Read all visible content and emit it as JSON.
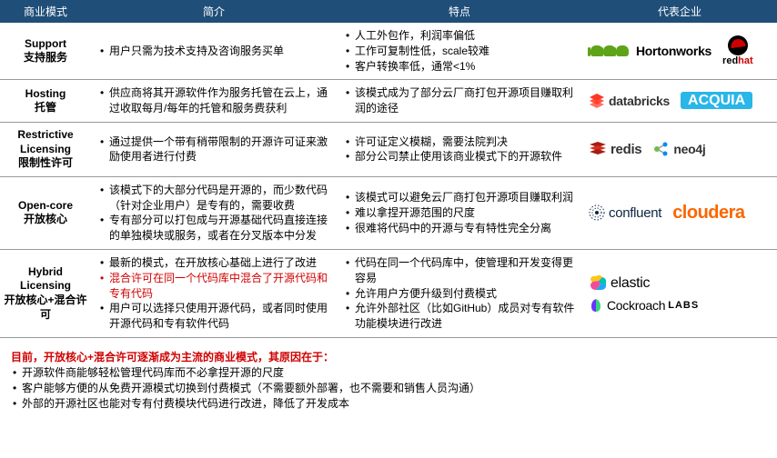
{
  "columns": [
    "商业模式",
    "简介",
    "特点",
    "代表企业"
  ],
  "rows": [
    {
      "model_en": "Support",
      "model_cn": "支持服务",
      "intro": [
        "用户只需为技术支持及咨询服务买单"
      ],
      "features": [
        "人工外包作，利润率偏低",
        "工作可复制性低，scale较难",
        "客户转换率低，通常<1%"
      ],
      "logos": [
        "hortonworks",
        "redhat"
      ]
    },
    {
      "model_en": "Hosting",
      "model_cn": "托管",
      "intro": [
        "供应商将其开源软件作为服务托管在云上，通过收取每月/每年的托管和服务费获利"
      ],
      "features": [
        "该模式成为了部分云厂商打包开源项目赚取利润的途径"
      ],
      "logos": [
        "databricks",
        "acquia"
      ]
    },
    {
      "model_en": "Restrictive Licensing",
      "model_cn": "限制性许可",
      "intro": [
        "通过提供一个带有稍带限制的开源许可证来激励使用者进行付费"
      ],
      "features": [
        "许可证定义模糊，需要法院判决",
        "部分公司禁止使用该商业模式下的开源软件"
      ],
      "logos": [
        "redis",
        "neo4j"
      ]
    },
    {
      "model_en": "Open-core",
      "model_cn": "开放核心",
      "intro": [
        "该模式下的大部分代码是开源的，而少数代码（针对企业用户）是专有的，需要收费",
        "专有部分可以打包成与开源基础代码直接连接的单独模块或服务，或者在分叉版本中分发"
      ],
      "features": [
        "该模式可以避免云厂商打包开源项目赚取利润",
        "难以拿捏开源范围的尺度",
        "很难将代码中的开源与专有特性完全分离"
      ],
      "logos": [
        "confluent",
        "cloudera"
      ]
    },
    {
      "model_en": "Hybrid Licensing",
      "model_cn": "开放核心+混合许可",
      "intro": [
        {
          "t": "最新的模式，在开放核心基础上进行了改进",
          "c": "black"
        },
        {
          "t": "混合许可在同一个代码库中混合了开源代码和专有代码",
          "c": "red"
        },
        {
          "t": "用户可以选择只使用开源代码，或者同时使用开源代码和专有软件代码",
          "c": "black"
        }
      ],
      "features": [
        "代码在同一个代码库中，使管理和开发变得更容易",
        "允许用户方便升级到付费模式",
        "允许外部社区（比如GitHub）成员对专有软件功能模块进行改进"
      ],
      "logos": [
        "elastic",
        "cockroach"
      ]
    }
  ],
  "summary_title": "目前，开放核心+混合许可逐渐成为主流的商业模式，其原因在于：",
  "summary_items": [
    "开源软件商能够轻松管理代码库而不必拿捏开源的尺度",
    "客户能够方便的从免费开源模式切换到付费模式（不需要额外部署，也不需要和销售人员沟通）",
    "外部的开源社区也能对专有付费模块代码进行改进，降低了开发成本"
  ],
  "logo_text": {
    "hortonworks": "Hortonworks",
    "databricks": "databricks",
    "acquia": "ACQUIA",
    "redis": "redis",
    "neo4j": "neo4j",
    "confluent": "confluent",
    "cloudera": "cloudera",
    "elastic": "elastic",
    "cockroach": "Cockroach",
    "cockroach_suffix": "LABS"
  },
  "colors": {
    "header_bg": "#1f4e79",
    "red": "#d00000",
    "databricks": "#ff3621",
    "acquia": "#29b6e8",
    "redis": "#a41e11",
    "neo4j_green": "#6dbe4b",
    "confluent": "#0b2540",
    "cloudera": "#f96702",
    "elastic_y": "#fec514",
    "elastic_t": "#00bfb3",
    "elastic_p": "#f04e98",
    "cockroach": "#6933ff",
    "horton_green": "#5fa318"
  }
}
